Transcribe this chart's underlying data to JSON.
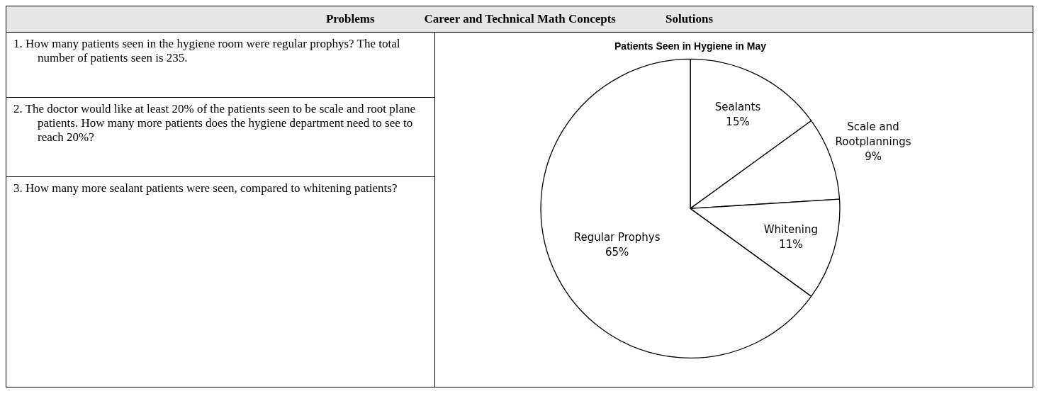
{
  "chart_data": [
    {
      "type": "other",
      "categories": [
        "Problems",
        "Career and Technical Math Concepts",
        "Solutions"
      ],
      "annotations": [
        "1. How many patients seen in the hygiene room were regular prophys? The total number of patients seen is 235.",
        "2. The doctor would like at least 20% of the patients seen to be scale and root plane patients.  How many more patients does the hygiene department need to see to reach 20%?",
        "3. How many more sealant patients were seen, compared to whitening patients?"
      ]
    },
    {
      "type": "pie",
      "title": "Patients Seen in Hygiene in May",
      "categories": [
        "Sealants",
        "Scale and Rootplannings",
        "Whitening",
        "Regular Prophys"
      ],
      "values": [
        15,
        9,
        11,
        65
      ],
      "colors": [
        "#ffffff",
        "#ffffff",
        "#ffffff",
        "#ffffff"
      ],
      "value_labels": [
        "15%",
        "9%",
        "11%",
        "65%"
      ]
    }
  ]
}
